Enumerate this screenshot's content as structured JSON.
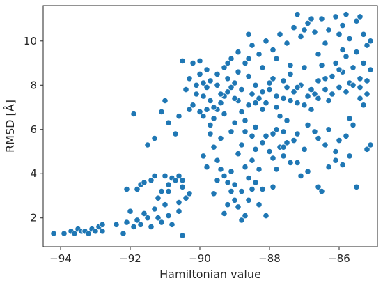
{
  "chart_data": {
    "type": "scatter",
    "title": "",
    "xlabel": "Hamiltonian value",
    "ylabel": "RMSD [Å]",
    "xlim": [
      -94.5,
      -84.9
    ],
    "ylim": [
      0.7,
      11.6
    ],
    "xticks": [
      -94,
      -92,
      -90,
      -88,
      -86
    ],
    "yticks": [
      2,
      4,
      6,
      8,
      10
    ],
    "xtick_labels": [
      "−94",
      "−92",
      "−90",
      "−88",
      "−86"
    ],
    "ytick_labels": [
      "2",
      "4",
      "6",
      "8",
      "10"
    ],
    "grid": false,
    "legend": "none",
    "marker_color": "#1f77b4",
    "marker_edge": "#ffffff",
    "points": [
      [
        -94.2,
        1.3
      ],
      [
        -93.9,
        1.3
      ],
      [
        -93.7,
        1.4
      ],
      [
        -93.6,
        1.3
      ],
      [
        -93.5,
        1.5
      ],
      [
        -93.4,
        1.4
      ],
      [
        -93.3,
        1.4
      ],
      [
        -93.2,
        1.3
      ],
      [
        -93.1,
        1.5
      ],
      [
        -93.0,
        1.4
      ],
      [
        -92.9,
        1.6
      ],
      [
        -92.8,
        1.4
      ],
      [
        -92.8,
        1.7
      ],
      [
        -92.4,
        1.7
      ],
      [
        -92.2,
        1.3
      ],
      [
        -92.1,
        1.8
      ],
      [
        -92.0,
        2.3
      ],
      [
        -91.9,
        1.6
      ],
      [
        -91.8,
        1.9
      ],
      [
        -91.7,
        1.7
      ],
      [
        -91.6,
        2.2
      ],
      [
        -91.5,
        2.0
      ],
      [
        -91.4,
        1.6
      ],
      [
        -91.3,
        2.4
      ],
      [
        -91.2,
        2.0
      ],
      [
        -91.1,
        1.8
      ],
      [
        -91.0,
        2.6
      ],
      [
        -90.9,
        2.1
      ],
      [
        -90.8,
        1.7
      ],
      [
        -90.6,
        2.3
      ],
      [
        -90.5,
        1.2
      ],
      [
        -90.4,
        2.9
      ],
      [
        -90.6,
        2.7
      ],
      [
        -90.3,
        3.1
      ],
      [
        -90.5,
        3.4
      ],
      [
        -92.1,
        3.3
      ],
      [
        -91.7,
        3.5
      ],
      [
        -91.8,
        3.3
      ],
      [
        -91.6,
        3.6
      ],
      [
        -91.4,
        3.7
      ],
      [
        -91.3,
        3.9
      ],
      [
        -91.1,
        3.2
      ],
      [
        -90.9,
        3.5
      ],
      [
        -90.8,
        3.8
      ],
      [
        -90.7,
        3.7
      ],
      [
        -90.6,
        3.9
      ],
      [
        -91.0,
        3.9
      ],
      [
        -91.2,
        2.9
      ],
      [
        -90.9,
        3.2
      ],
      [
        -90.5,
        3.7
      ],
      [
        -91.9,
        6.7
      ],
      [
        -91.5,
        5.3
      ],
      [
        -91.3,
        5.6
      ],
      [
        -91.1,
        6.8
      ],
      [
        -91.0,
        7.3
      ],
      [
        -90.9,
        6.3
      ],
      [
        -90.7,
        5.8
      ],
      [
        -90.6,
        6.6
      ],
      [
        -90.4,
        7.8
      ],
      [
        -90.3,
        8.3
      ],
      [
        -90.5,
        9.1
      ],
      [
        -90.2,
        9.0
      ],
      [
        -90.0,
        9.1
      ],
      [
        -90.1,
        8.0
      ],
      [
        -89.9,
        7.5
      ],
      [
        -89.8,
        6.9
      ],
      [
        -89.7,
        5.8
      ],
      [
        -89.6,
        5.2
      ],
      [
        -89.5,
        4.6
      ],
      [
        -89.4,
        4.2
      ],
      [
        -89.3,
        3.9
      ],
      [
        -89.2,
        3.6
      ],
      [
        -89.1,
        3.2
      ],
      [
        -89.0,
        2.8
      ],
      [
        -88.9,
        2.5
      ],
      [
        -88.8,
        1.9
      ],
      [
        -88.7,
        2.1
      ],
      [
        -88.6,
        2.8
      ],
      [
        -88.5,
        3.3
      ],
      [
        -88.4,
        3.6
      ],
      [
        -88.3,
        2.6
      ],
      [
        -88.1,
        2.1
      ],
      [
        -87.9,
        3.4
      ],
      [
        -87.8,
        4.2
      ],
      [
        -87.6,
        4.8
      ],
      [
        -87.5,
        5.4
      ],
      [
        -87.4,
        4.5
      ],
      [
        -87.2,
        4.5
      ],
      [
        -87.1,
        3.9
      ],
      [
        -86.9,
        4.1
      ],
      [
        -86.6,
        3.4
      ],
      [
        -86.5,
        3.2
      ],
      [
        -86.3,
        4.3
      ],
      [
        -86.1,
        4.6
      ],
      [
        -85.9,
        4.4
      ],
      [
        -85.7,
        4.8
      ],
      [
        -85.5,
        3.4
      ],
      [
        -85.2,
        5.1
      ],
      [
        -85.1,
        5.3
      ],
      [
        -85.6,
        6.2
      ],
      [
        -89.9,
        4.8
      ],
      [
        -89.8,
        4.3
      ],
      [
        -89.6,
        3.1
      ],
      [
        -89.5,
        3.7
      ],
      [
        -89.3,
        2.2
      ],
      [
        -89.2,
        2.6
      ],
      [
        -89.1,
        4.1
      ],
      [
        -89.0,
        3.5
      ],
      [
        -88.9,
        4.9
      ],
      [
        -88.8,
        3.2
      ],
      [
        -88.7,
        4.3
      ],
      [
        -88.6,
        3.8
      ],
      [
        -88.5,
        4.6
      ],
      [
        -88.4,
        5.1
      ],
      [
        -88.3,
        4.2
      ],
      [
        -88.2,
        3.3
      ],
      [
        -88.0,
        5.0
      ],
      [
        -87.9,
        4.7
      ],
      [
        -87.7,
        5.2
      ],
      [
        -87.6,
        5.9
      ],
      [
        -89.7,
        6.2
      ],
      [
        -89.6,
        6.5
      ],
      [
        -89.5,
        6.9
      ],
      [
        -89.4,
        7.2
      ],
      [
        -89.3,
        7.5
      ],
      [
        -89.2,
        7.7
      ],
      [
        -89.1,
        7.9
      ],
      [
        -89.0,
        8.1
      ],
      [
        -88.9,
        7.3
      ],
      [
        -88.8,
        6.8
      ],
      [
        -88.7,
        6.4
      ],
      [
        -88.6,
        7.1
      ],
      [
        -88.5,
        7.6
      ],
      [
        -88.4,
        8.0
      ],
      [
        -88.3,
        7.4
      ],
      [
        -88.2,
        6.9
      ],
      [
        -88.1,
        7.2
      ],
      [
        -88.0,
        7.8
      ],
      [
        -87.9,
        8.3
      ],
      [
        -87.8,
        7.0
      ],
      [
        -87.7,
        6.6
      ],
      [
        -87.6,
        7.4
      ],
      [
        -87.5,
        7.9
      ],
      [
        -87.4,
        8.5
      ],
      [
        -87.3,
        7.7
      ],
      [
        -87.2,
        7.2
      ],
      [
        -87.1,
        8.0
      ],
      [
        -87.0,
        8.8
      ],
      [
        -86.9,
        7.5
      ],
      [
        -86.8,
        6.9
      ],
      [
        -86.7,
        7.6
      ],
      [
        -86.6,
        8.2
      ],
      [
        -86.5,
        8.9
      ],
      [
        -86.4,
        7.8
      ],
      [
        -86.3,
        7.3
      ],
      [
        -86.2,
        8.4
      ],
      [
        -86.1,
        9.0
      ],
      [
        -86.0,
        7.9
      ],
      [
        -85.9,
        8.6
      ],
      [
        -85.8,
        9.3
      ],
      [
        -85.7,
        8.1
      ],
      [
        -85.6,
        8.8
      ],
      [
        -85.5,
        9.5
      ],
      [
        -85.4,
        8.3
      ],
      [
        -85.3,
        9.0
      ],
      [
        -85.2,
        9.8
      ],
      [
        -85.1,
        8.7
      ],
      [
        -85.2,
        7.6
      ],
      [
        -85.3,
        7.1
      ],
      [
        -85.4,
        7.9
      ],
      [
        -89.8,
        7.9
      ],
      [
        -89.7,
        8.2
      ],
      [
        -89.5,
        8.0
      ],
      [
        -89.4,
        7.6
      ],
      [
        -89.2,
        8.3
      ],
      [
        -89.0,
        7.4
      ],
      [
        -88.8,
        7.8
      ],
      [
        -88.6,
        8.4
      ],
      [
        -88.4,
        7.2
      ],
      [
        -88.2,
        7.7
      ],
      [
        -88.0,
        8.1
      ],
      [
        -87.8,
        7.5
      ],
      [
        -87.6,
        8.2
      ],
      [
        -87.4,
        7.3
      ],
      [
        -87.2,
        7.9
      ],
      [
        -87.0,
        7.1
      ],
      [
        -86.8,
        7.8
      ],
      [
        -86.6,
        7.4
      ],
      [
        -86.4,
        8.3
      ],
      [
        -86.2,
        7.6
      ],
      [
        -86.0,
        8.7
      ],
      [
        -85.8,
        7.7
      ],
      [
        -85.6,
        8.0
      ],
      [
        -85.4,
        7.4
      ],
      [
        -85.2,
        8.2
      ],
      [
        -89.3,
        8.8
      ],
      [
        -89.1,
        9.2
      ],
      [
        -88.9,
        9.5
      ],
      [
        -88.7,
        9.0
      ],
      [
        -88.5,
        9.8
      ],
      [
        -88.3,
        9.4
      ],
      [
        -88.1,
        10.0
      ],
      [
        -87.9,
        9.6
      ],
      [
        -87.7,
        10.3
      ],
      [
        -87.5,
        9.9
      ],
      [
        -87.3,
        10.6
      ],
      [
        -87.1,
        10.2
      ],
      [
        -86.9,
        10.8
      ],
      [
        -86.7,
        10.4
      ],
      [
        -86.5,
        11.0
      ],
      [
        -86.3,
        10.5
      ],
      [
        -86.1,
        11.1
      ],
      [
        -85.9,
        10.7
      ],
      [
        -85.7,
        10.1
      ],
      [
        -85.5,
        10.9
      ],
      [
        -85.3,
        10.3
      ],
      [
        -85.1,
        10.0
      ],
      [
        -88.6,
        10.3
      ],
      [
        -87.2,
        11.2
      ],
      [
        -86.8,
        11.0
      ],
      [
        -85.8,
        11.2
      ],
      [
        -85.4,
        11.1
      ],
      [
        -87.0,
        10.5
      ],
      [
        -86.4,
        9.9
      ],
      [
        -86.0,
        10.3
      ],
      [
        -88.2,
        8.8
      ],
      [
        -87.8,
        9.2
      ],
      [
        -87.4,
        8.9
      ],
      [
        -86.6,
        9.4
      ],
      [
        -85.9,
        9.6
      ],
      [
        -89.9,
        6.6
      ],
      [
        -89.6,
        7.0
      ],
      [
        -89.3,
        6.7
      ],
      [
        -89.0,
        6.3
      ],
      [
        -88.7,
        5.9
      ],
      [
        -88.4,
        6.1
      ],
      [
        -88.1,
        5.7
      ],
      [
        -87.8,
        6.0
      ],
      [
        -87.5,
        6.4
      ],
      [
        -87.2,
        5.8
      ],
      [
        -86.9,
        6.2
      ],
      [
        -86.6,
        5.6
      ],
      [
        -86.3,
        6.0
      ],
      [
        -86.0,
        5.5
      ],
      [
        -85.7,
        6.5
      ],
      [
        -89.4,
        5.6
      ],
      [
        -89.1,
        5.9
      ],
      [
        -88.8,
        5.3
      ],
      [
        -88.5,
        5.7
      ],
      [
        -88.2,
        5.4
      ],
      [
        -87.9,
        5.8
      ],
      [
        -87.6,
        5.2
      ],
      [
        -87.3,
        5.5
      ],
      [
        -87.0,
        5.1
      ],
      [
        -86.7,
        5.9
      ],
      [
        -86.4,
        5.3
      ],
      [
        -86.1,
        5.0
      ],
      [
        -85.8,
        5.7
      ],
      [
        -90.1,
        7.6
      ],
      [
        -90.0,
        6.8
      ],
      [
        -89.9,
        8.1
      ],
      [
        -89.7,
        7.3
      ],
      [
        -90.2,
        7.1
      ],
      [
        -90.3,
        6.9
      ],
      [
        -90.0,
        8.5
      ],
      [
        -89.8,
        8.7
      ],
      [
        -89.5,
        8.5
      ],
      [
        -89.2,
        9.0
      ],
      [
        -88.9,
        8.6
      ],
      [
        -88.6,
        9.2
      ]
    ]
  }
}
